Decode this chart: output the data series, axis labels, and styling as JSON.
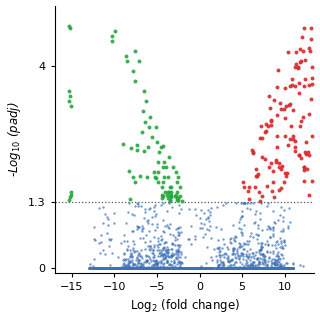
{
  "title": "",
  "xlabel": "Log$_2$ (fold change)",
  "ylabel": "-Log$_{10}$ ($p$adj)",
  "xlim": [
    -17,
    13.5
  ],
  "ylim": [
    -0.1,
    5.2
  ],
  "threshold_y": 1.3,
  "colors": {
    "blue": "#3d72b8",
    "green": "#27a640",
    "red": "#d42b2b"
  },
  "xticks": [
    -15,
    -10,
    -5,
    0,
    5,
    10
  ],
  "yticks": [
    0,
    1.3,
    4
  ],
  "ytick_labels": [
    "0",
    "1.3",
    "4"
  ],
  "seed": 99,
  "background_color": "#ffffff"
}
